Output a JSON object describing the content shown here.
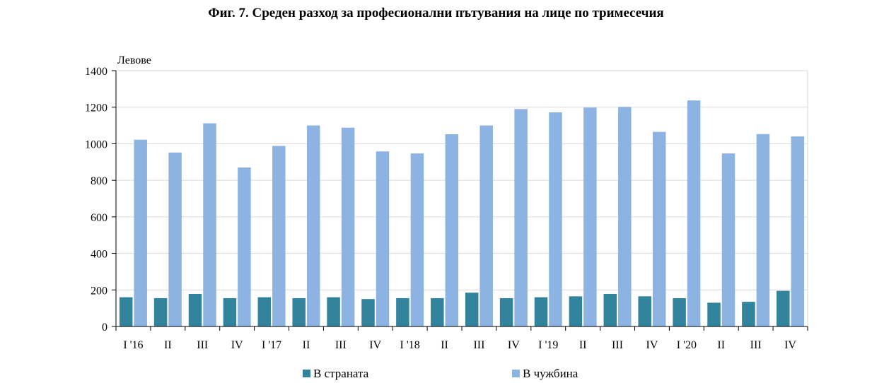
{
  "chart_data": {
    "type": "bar",
    "title": "Фиг. 7. Среден разход за професионални пътувания на лице по тримесечия",
    "ylabel": "Левове",
    "xlabel": "",
    "ylim": [
      0,
      1400
    ],
    "yticks": [
      0,
      200,
      400,
      600,
      800,
      1000,
      1200,
      1400
    ],
    "grid": true,
    "legend_position": "bottom",
    "categories": [
      "I '16",
      "II",
      "III",
      "IV",
      "I '17",
      "II",
      "III",
      "IV",
      "I '18",
      "II",
      "III",
      "IV",
      "I '19",
      "II",
      "III",
      "IV",
      "I '20",
      "II",
      "III",
      "IV"
    ],
    "series": [
      {
        "name": "В страната",
        "color": "#31849b",
        "values": [
          160,
          155,
          178,
          155,
          160,
          155,
          160,
          150,
          155,
          155,
          185,
          155,
          160,
          165,
          178,
          165,
          155,
          130,
          135,
          195
        ]
      },
      {
        "name": "В чужбина",
        "color": "#8db3e2",
        "values": [
          1022,
          952,
          1112,
          870,
          988,
          1100,
          1088,
          958,
          947,
          1052,
          1100,
          1190,
          1172,
          1198,
          1202,
          1065,
          1237,
          947,
          1053,
          1040
        ]
      }
    ]
  }
}
